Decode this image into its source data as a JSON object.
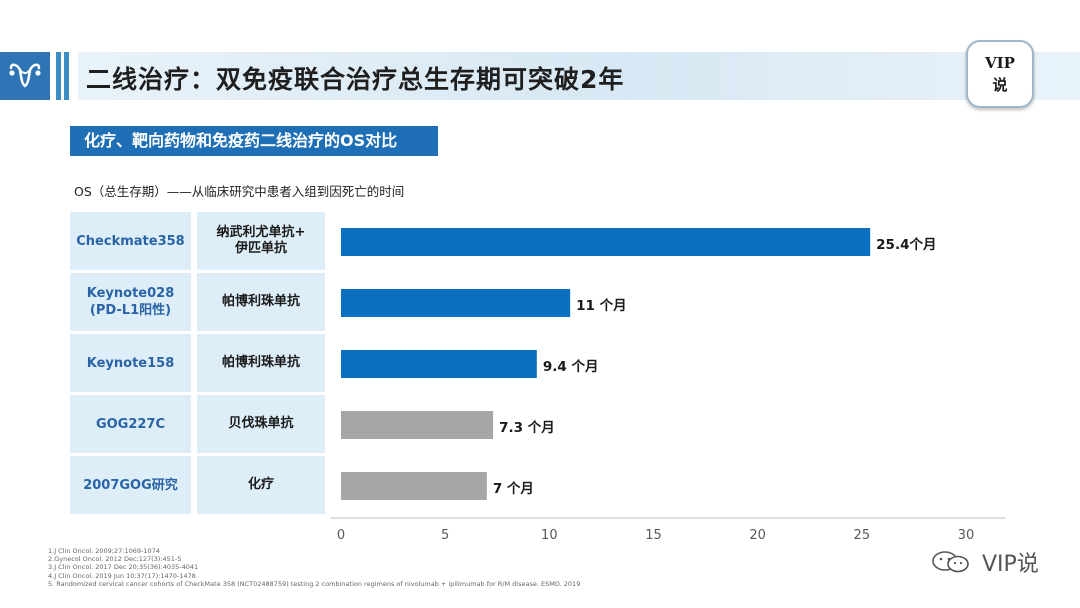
{
  "header": {
    "title": "二线治疗：双免疫联合治疗总生存期可突破2年",
    "badge_line1": "VIP",
    "badge_line2": "说"
  },
  "subtitle": "化疗、靶向药物和免疫药二线治疗的OS对比",
  "os_note": "OS（总生存期）——从临床研究中患者入组到因死亡的时间",
  "rows": [
    {
      "study": "Checkmate358",
      "drug": "纳武利尤单抗+\n伊匹单抗"
    },
    {
      "study": "Keynote028\n(PD-L1阳性)",
      "drug": "帕博利珠单抗"
    },
    {
      "study": "Keynote158",
      "drug": "帕博利珠单抗"
    },
    {
      "study": "GOG227C",
      "drug": "贝伐珠单抗"
    },
    {
      "study": "2007GOG研究",
      "drug": "化疗"
    }
  ],
  "chart_data": {
    "type": "bar",
    "orientation": "horizontal",
    "categories": [
      "Checkmate358",
      "Keynote028 (PD-L1阳性)",
      "Keynote158",
      "GOG227C",
      "2007GOG研究"
    ],
    "values": [
      25.4,
      11,
      9.4,
      7.3,
      7
    ],
    "value_labels": [
      "25.4个月",
      "11 个月",
      "9.4 个月",
      "7.3 个月",
      "7 个月"
    ],
    "bar_colors": [
      "#0b6fc0",
      "#0b6fc0",
      "#0b6fc0",
      "#a6a6a6",
      "#a6a6a6"
    ],
    "xlim": [
      0,
      30
    ],
    "xticks": [
      0,
      5,
      10,
      15,
      20,
      25,
      30
    ],
    "grid": false
  },
  "footnotes": [
    "1.J Clin Oncol. 2009;27:1069-1074",
    "2.Gynecol Oncol. 2012 Dec;127(3):451-5",
    "3.J Clin Oncol. 2017 Dec 20;35(36):4035-4041",
    "4.J Clin Oncol. 2019 Jun 10;37(17):1470-1478",
    "5. Randomized cervical cancer cohorts of CheckMate 358 (NCT02488759) testing 2 combination regimens of nivolumab + ipilimumab for R/M disease. ESMO. 2019"
  ],
  "brand": "VIP说",
  "colors": {
    "accent": "#1f6fb7",
    "cell_bg": "#deeef8",
    "study_text": "#2a64a6"
  }
}
